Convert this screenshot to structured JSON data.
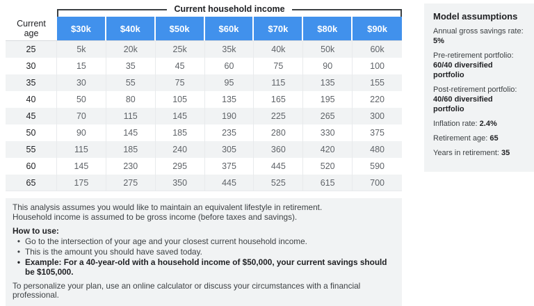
{
  "bracket": {
    "label": "Current household income"
  },
  "table": {
    "corner_header": "Current\nage",
    "income_columns": [
      "$30k",
      "$40k",
      "$50k",
      "$60k",
      "$70k",
      "$80k",
      "$90k"
    ],
    "rows": [
      {
        "age": "25",
        "values": [
          "5k",
          "20k",
          "25k",
          "35k",
          "40k",
          "50k",
          "60k"
        ]
      },
      {
        "age": "30",
        "values": [
          "15",
          "35",
          "45",
          "60",
          "75",
          "90",
          "100"
        ]
      },
      {
        "age": "35",
        "values": [
          "30",
          "55",
          "75",
          "95",
          "115",
          "135",
          "155"
        ]
      },
      {
        "age": "40",
        "values": [
          "50",
          "80",
          "105",
          "135",
          "165",
          "195",
          "220"
        ]
      },
      {
        "age": "45",
        "values": [
          "70",
          "115",
          "145",
          "190",
          "225",
          "265",
          "300"
        ]
      },
      {
        "age": "50",
        "values": [
          "90",
          "145",
          "185",
          "235",
          "280",
          "330",
          "375"
        ]
      },
      {
        "age": "55",
        "values": [
          "115",
          "185",
          "240",
          "305",
          "360",
          "420",
          "480"
        ]
      },
      {
        "age": "60",
        "values": [
          "145",
          "230",
          "295",
          "375",
          "445",
          "520",
          "590"
        ]
      },
      {
        "age": "65",
        "values": [
          "175",
          "275",
          "350",
          "445",
          "525",
          "615",
          "700"
        ]
      }
    ]
  },
  "assumptions": {
    "title": "Model assumptions",
    "items": [
      {
        "label": "Annual gross savings rate:",
        "value": "5%",
        "layout": "stacked"
      },
      {
        "label": "Pre-retirement portfolio:",
        "value": "60/40 diversified portfolio",
        "layout": "stacked"
      },
      {
        "label": "Post-retirement portfolio:",
        "value": "40/60 diversified portfolio",
        "layout": "stacked"
      },
      {
        "label": "Inflation rate:",
        "value": "2.4%",
        "layout": "inline"
      },
      {
        "label": "Retirement age:",
        "value": "65",
        "layout": "inline"
      },
      {
        "label": "Years in retirement:",
        "value": "35",
        "layout": "inline"
      }
    ]
  },
  "notes": {
    "intro_lines": [
      "This analysis assumes you would like to maintain an equivalent lifestyle in retirement.",
      "Household income is assumed to be gross income (before taxes and savings)."
    ],
    "how_to_use_title": "How to use:",
    "bullets": [
      {
        "text": "Go to the intersection of your age and your closest current household income.",
        "bold": false
      },
      {
        "text": "This is the amount you should have saved today.",
        "bold": false
      },
      {
        "text": "Example: For a 40-year-old with a household income of $50,000, your current savings should be $105,000.",
        "bold": true
      }
    ],
    "closing": "To personalize your plan, use an online calculator or discuss your circumstances with a financial professional."
  },
  "colors": {
    "header_blue": "#4191ec",
    "stripe_gray": "#f1f3f4",
    "panel_gray": "#f1f3f4",
    "bracket_line": "#3c4043",
    "value_text": "#5f6368"
  }
}
